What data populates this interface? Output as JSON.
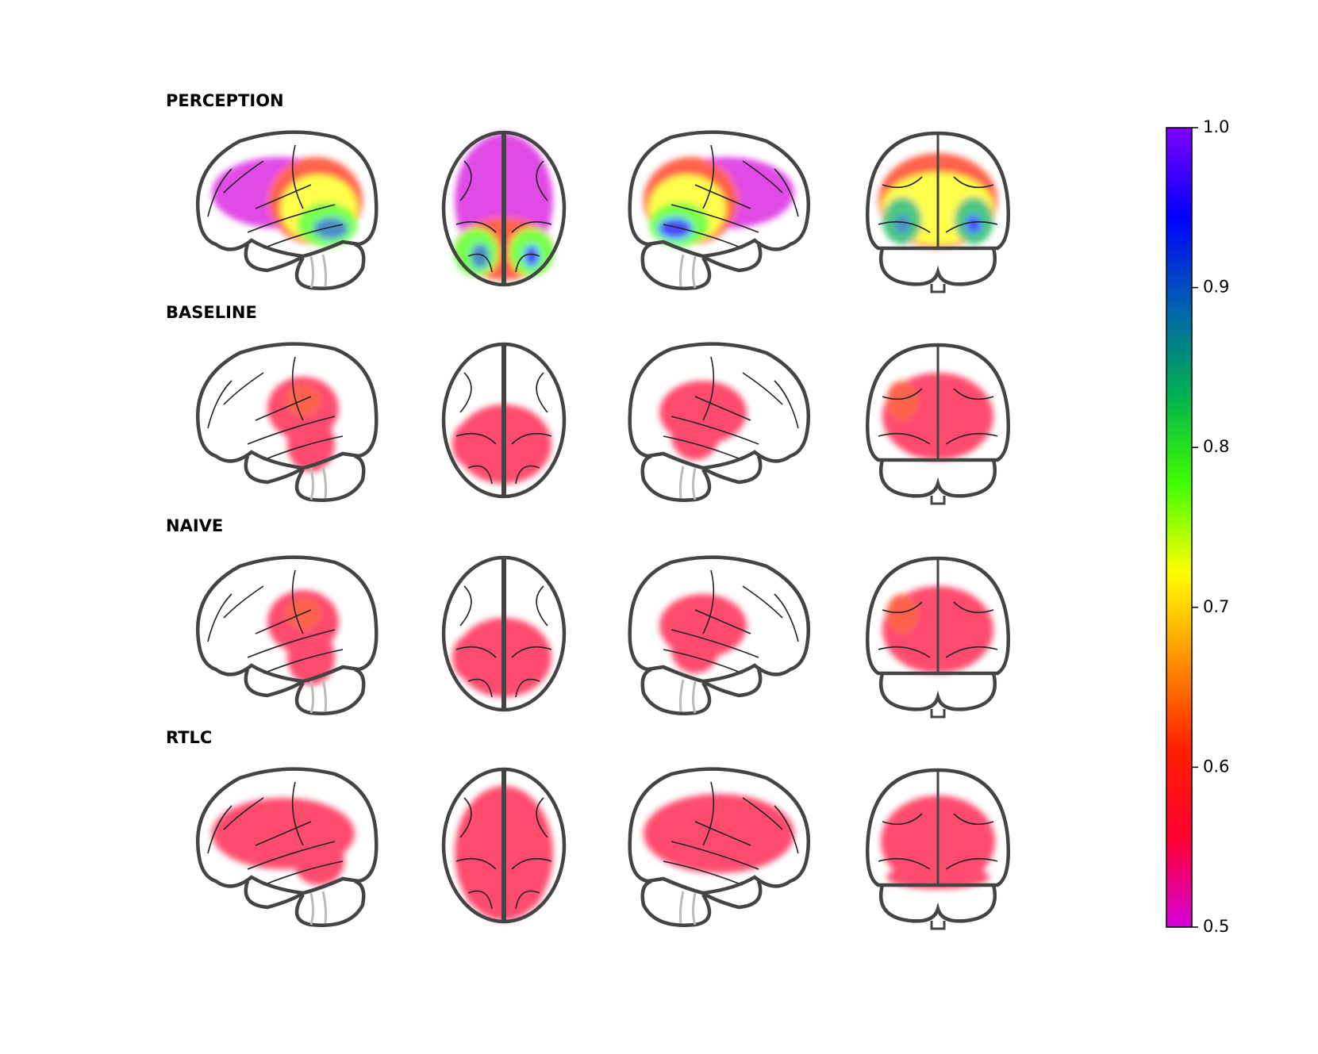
{
  "chart_data": {
    "type": "brain-map",
    "panels": [
      {
        "title": "PERCEPTION"
      },
      {
        "title": "BASELINE"
      },
      {
        "title": "NAIVE"
      },
      {
        "title": "RTLC"
      }
    ],
    "colorbar": {
      "ylim": [
        0.5,
        1.0
      ],
      "yticks": [
        0.5,
        0.6,
        0.7,
        0.8,
        0.9,
        {
          "value": 1,
          "label": "1.0"
        }
      ],
      "colormap": [
        "#d400dc",
        "#ff0030",
        "#ff2000",
        "#ff9000",
        "#ffff00",
        "#40ff00",
        "#00b050",
        "#0060b0",
        "#0000ff",
        "#8000ff"
      ]
    }
  }
}
